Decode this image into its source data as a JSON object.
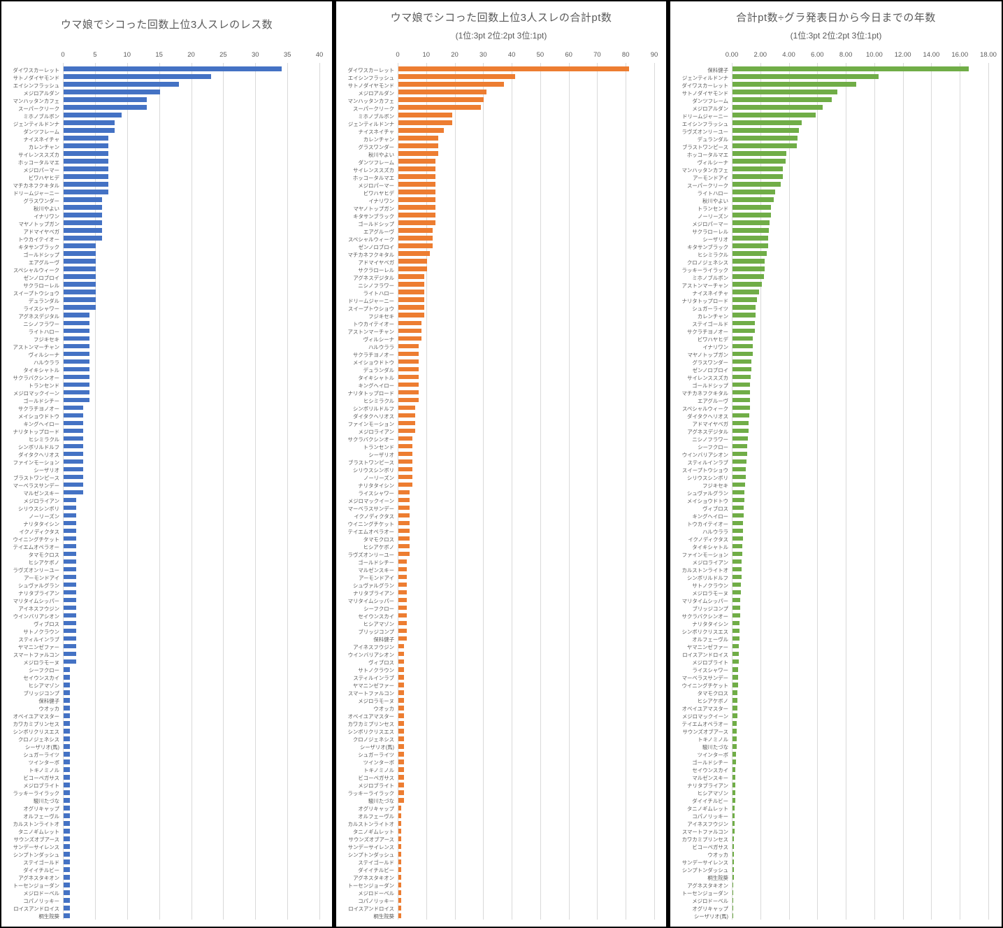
{
  "chart_data": [
    {
      "type": "bar",
      "orientation": "horizontal",
      "title": "ウマ娘でシコった回数上位3人スレのレス数",
      "subtitle": "",
      "color": "#4472C4",
      "grid": true,
      "legend": "none",
      "xlim": [
        0,
        40
      ],
      "ticks": [
        "0",
        "5",
        "10",
        "15",
        "20",
        "25",
        "30",
        "35",
        "40"
      ],
      "categories": [
        "ダイワスカーレット",
        "サトノダイヤモンド",
        "エイシンフラッシュ",
        "メジロアルダン",
        "マンハッタンカフェ",
        "スーパークリーク",
        "ミホノブルボン",
        "ジェンティルドンナ",
        "ダンツフレーム",
        "ナイスネイチャ",
        "カレンチャン",
        "サイレンススズカ",
        "ホッコータルマエ",
        "メジロパーマー",
        "ビワハヤヒデ",
        "マチカネフクキタル",
        "ドリームジャーニー",
        "グラスワンダー",
        "秋川やよい",
        "イナリワン",
        "マヤノトップガン",
        "アドマイヤベガ",
        "トウカイテイオー",
        "キタサンブラック",
        "ゴールドシップ",
        "エアグルーヴ",
        "スペシャルウィーク",
        "ゼンノロブロイ",
        "サクラローレル",
        "スイープトウショウ",
        "デュランダル",
        "ライスシャワー",
        "アグネスデジタル",
        "ニシノフラワー",
        "ライトハロー",
        "フジキセキ",
        "アストンマーチャン",
        "ヴィルシーナ",
        "ハルウララ",
        "タイキシャトル",
        "サクラバクシンオー",
        "トランセンド",
        "メジロマックイーン",
        "ゴールドシチー",
        "サクラチヨノオー",
        "メイショウドトウ",
        "キングヘイロー",
        "ナリタトップロード",
        "ヒシミラクル",
        "シンボリルドルフ",
        "ダイタクヘリオス",
        "ファインモーション",
        "シーザリオ",
        "ブラストワンピース",
        "マーベラスサンデー",
        "マルゼンスキー",
        "メジロライアン",
        "シリウスシンボリ",
        "ノーリーズン",
        "ナリタタイシン",
        "イクノディクタス",
        "ウイニングチケット",
        "テイエムオペラオー",
        "タマモクロス",
        "ヒシアケボノ",
        "ラヴズオンリーユー",
        "アーモンドアイ",
        "シュヴァルグラン",
        "ナリタブライアン",
        "マリタイムシッパー",
        "アイネスフウジン",
        "ウインバリアシオン",
        "ヴィブロス",
        "サトノクラウン",
        "スティルインラブ",
        "ヤマニンゼファー",
        "スマートファルコン",
        "メジロラモーヌ",
        "シーフクロー",
        "セイウンスカイ",
        "ヒシアマゾン",
        "ブリッジコンプ",
        "保科健子",
        "ウオッカ",
        "オベイユアマスター",
        "カワカミプリンセス",
        "シンボリクリスエス",
        "クロノジェネシス",
        "シーザリオ(馬)",
        "シュガーライツ",
        "ツインターボ",
        "トキノミノル",
        "ビコーペガサス",
        "メジロブライト",
        "ラッキーライラック",
        "駿川たづな",
        "オグリキャップ",
        "オルフェーヴル",
        "カルストンライトオ",
        "タニノギムレット",
        "サウンズオブアース",
        "サンデーサイレンス",
        "シンプトンダッシュ",
        "ステイゴールド",
        "ダイイチルビー",
        "アグネスタキオン",
        "トーセンジョーダン",
        "メジロドーベル",
        "コパノリッキー",
        "ロイスアンドロイス",
        "桐生院葵"
      ],
      "values": [
        34,
        23,
        18,
        15,
        13,
        13,
        9,
        8,
        8,
        7,
        7,
        7,
        7,
        7,
        7,
        7,
        7,
        6,
        6,
        6,
        6,
        6,
        6,
        5,
        5,
        5,
        5,
        5,
        5,
        5,
        5,
        5,
        4,
        4,
        4,
        4,
        4,
        4,
        4,
        4,
        4,
        4,
        4,
        4,
        3,
        3,
        3,
        3,
        3,
        3,
        3,
        3,
        3,
        3,
        3,
        3,
        2,
        2,
        2,
        2,
        2,
        2,
        2,
        2,
        2,
        2,
        2,
        2,
        2,
        2,
        2,
        2,
        2,
        2,
        2,
        2,
        2,
        2,
        1,
        1,
        1,
        1,
        1,
        1,
        1,
        1,
        1,
        1,
        1,
        1,
        1,
        1,
        1,
        1,
        1,
        1,
        1,
        1,
        1,
        1,
        1,
        1,
        1,
        1,
        1,
        1,
        1,
        1,
        1,
        1,
        1
      ]
    },
    {
      "type": "bar",
      "orientation": "horizontal",
      "title": "ウマ娘でシコった回数上位3人スレの合計pt数",
      "subtitle": "(1位:3pt 2位:2pt 3位:1pt)",
      "color": "#ED7D31",
      "grid": true,
      "legend": "none",
      "xlim": [
        0,
        90
      ],
      "ticks": [
        "0",
        "10",
        "20",
        "30",
        "40",
        "50",
        "60",
        "70",
        "80",
        "90"
      ],
      "categories": [
        "ダイワスカーレット",
        "エイシンフラッシュ",
        "サトノダイヤモンド",
        "メジロアルダン",
        "マンハッタンカフェ",
        "スーパークリーク",
        "ミホノブルボン",
        "ジェンティルドンナ",
        "ナイスネイチャ",
        "カレンチャン",
        "グラスワンダー",
        "秋川やよい",
        "ダンツフレーム",
        "サイレンススズカ",
        "ホッコータルマエ",
        "メジロパーマー",
        "ビワハヤヒデ",
        "イナリワン",
        "マヤノトップガン",
        "キタサンブラック",
        "ゴールドシップ",
        "エアグルーヴ",
        "スペシャルウィーク",
        "ゼンノロブロイ",
        "マチカネフクキタル",
        "アドマイヤベガ",
        "サクラローレル",
        "アグネスデジタル",
        "ニシノフラワー",
        "ライトハロー",
        "ドリームジャーニー",
        "スイープトウショウ",
        "フジキセキ",
        "トウカイテイオー",
        "アストンマーチャン",
        "ヴィルシーナ",
        "ハルウララ",
        "サクラチヨノオー",
        "メイショウドトウ",
        "デュランダル",
        "タイキシャトル",
        "キングヘイロー",
        "ナリタトップロード",
        "ヒシミラクル",
        "シンボリルドルフ",
        "ダイタクヘリオス",
        "ファインモーション",
        "メジロライアン",
        "サクラバクシンオー",
        "トランセンド",
        "シーザリオ",
        "ブラストワンピース",
        "シリウスシンボリ",
        "ノーリーズン",
        "ナリタタイシン",
        "ライスシャワー",
        "メジロマックイーン",
        "マーベラスサンデー",
        "イクノディクタス",
        "ウイニングチケット",
        "テイエムオペラオー",
        "タマモクロス",
        "ヒシアケボノ",
        "ラヴズオンリーユー",
        "ゴールドシチー",
        "マルゼンスキー",
        "アーモンドアイ",
        "シュヴァルグラン",
        "ナリタブライアン",
        "マリタイムシッパー",
        "シーフクロー",
        "セイウンスカイ",
        "ヒシアマゾン",
        "ブリッジコンプ",
        "保科健子",
        "アイネスフウジン",
        "ウインバリアシオン",
        "ヴィブロス",
        "サトノクラウン",
        "スティルインラブ",
        "ヤマニンゼファー",
        "スマートファルコン",
        "メジロラモーヌ",
        "ウオッカ",
        "オベイユアマスター",
        "カワカミプリンセス",
        "シンボリクリスエス",
        "クロノジェネシス",
        "シーザリオ(馬)",
        "シュガーライツ",
        "ツインターボ",
        "トキノミノル",
        "ビコーペガサス",
        "メジロブライト",
        "ラッキーライラック",
        "駿川たづな",
        "オグリキャップ",
        "オルフェーヴル",
        "カルストンライトオ",
        "タニノギムレット",
        "サウンズオブアース",
        "サンデーサイレンス",
        "シンプトンダッシュ",
        "ステイゴールド",
        "ダイイチルビー",
        "アグネスタキオン",
        "トーセンジョーダン",
        "メジロドーベル",
        "コパノリッキー",
        "ロイスアンドロイス",
        "桐生院葵"
      ],
      "values": [
        81,
        41,
        37,
        31,
        30,
        29,
        19,
        19,
        16,
        14,
        14,
        14,
        13,
        13,
        13,
        13,
        13,
        13,
        13,
        13,
        13,
        12,
        12,
        12,
        11,
        10,
        10,
        9,
        9,
        9,
        9,
        9,
        9,
        8,
        8,
        8,
        7,
        7,
        7,
        7,
        7,
        7,
        7,
        7,
        6,
        6,
        6,
        6,
        5,
        5,
        5,
        5,
        5,
        5,
        5,
        4,
        4,
        4,
        4,
        4,
        4,
        4,
        4,
        4,
        3,
        3,
        3,
        3,
        3,
        3,
        3,
        3,
        3,
        3,
        3,
        2,
        2,
        2,
        2,
        2,
        2,
        2,
        2,
        2,
        2,
        2,
        2,
        2,
        2,
        2,
        2,
        2,
        2,
        2,
        2,
        2,
        1,
        1,
        1,
        1,
        1,
        1,
        1,
        1,
        1,
        1,
        1,
        1,
        1,
        1,
        1
      ]
    },
    {
      "type": "bar",
      "orientation": "horizontal",
      "title": "合計pt数÷グラ発表日から今日までの年数",
      "subtitle": "(1位:3pt 2位:2pt 3位:1pt)",
      "color": "#70AD47",
      "grid": true,
      "legend": "none",
      "xlim": [
        0,
        18
      ],
      "ticks": [
        "0.00",
        "2.00",
        "4.00",
        "6.00",
        "8.00",
        "10.00",
        "12.00",
        "14.00",
        "16.00",
        "18.00"
      ],
      "categories": [
        "保科健子",
        "ジェンティルドンナ",
        "ダイワスカーレット",
        "サトノダイヤモンド",
        "ダンツフレーム",
        "メジロアルダン",
        "ドリームジャーニー",
        "エイシンフラッシュ",
        "ラヴズオンリーユー",
        "デュランダル",
        "ブラストワンピース",
        "ホッコータルマエ",
        "ヴィルシーナ",
        "マンハッタンカフェ",
        "アーモンドアイ",
        "スーパークリーク",
        "ライトハロー",
        "秋川やよい",
        "トランセンド",
        "ノーリーズン",
        "メジロパーマー",
        "サクラローレル",
        "シーザリオ",
        "キタサンブラック",
        "ヒシミラクル",
        "クロノジェネシス",
        "ラッキーライラック",
        "ミホノブルボン",
        "アストンマーチャン",
        "ナイスネイチャ",
        "ナリタトップロード",
        "シュガーライツ",
        "カレンチャン",
        "ステイゴールド",
        "サクラチヨノオー",
        "ビワハヤヒデ",
        "イナリワン",
        "マヤノトップガン",
        "グラスワンダー",
        "ゼンノロブロイ",
        "サイレンススズカ",
        "ゴールドシップ",
        "マチカネフクキタル",
        "エアグルーヴ",
        "スペシャルウィーク",
        "ダイタクヘリオス",
        "アドマイヤベガ",
        "アグネスデジタル",
        "ニシノフラワー",
        "シーフクロー",
        "ウインバリアシオン",
        "スティルインラブ",
        "スイープトウショウ",
        "シリウスシンボリ",
        "フジキセキ",
        "シュヴァルグラン",
        "メイショウドトウ",
        "ヴィブロス",
        "キングヘイロー",
        "トウカイテイオー",
        "ハルウララ",
        "イクノディクタス",
        "タイキシャトル",
        "ファインモーション",
        "メジロライアン",
        "カルストンライトオ",
        "シンボリルドルフ",
        "サトノクラウン",
        "メジロラモーヌ",
        "マリタイムシッパー",
        "ブリッジコンプ",
        "サクラバクシンオー",
        "ナリタタイシン",
        "シンボリクリスエス",
        "オルフェーヴル",
        "ヤマニンゼファー",
        "ロイスアンドロイス",
        "メジロブライト",
        "ライスシャワー",
        "マーベラスサンデー",
        "ウイニングチケット",
        "タマモクロス",
        "ヒシアケボノ",
        "オベイユアマスター",
        "メジロマックイーン",
        "テイエムオペラオー",
        "サウンズオブアース",
        "トキノミノル",
        "駿川たづな",
        "ツインターボ",
        "ゴールドシチー",
        "セイウンスカイ",
        "マルゼンスキー",
        "ナリタブライアン",
        "ヒシアマゾン",
        "ダイイチルビー",
        "タニノギムレット",
        "コパノリッキー",
        "アイネスフウジン",
        "スマートファルコン",
        "カワカミプリンセス",
        "ビコーペガサス",
        "ウオッカ",
        "サンデーサイレンス",
        "シンプトンダッシュ",
        "桐生院葵",
        "アグネスタキオン",
        "トーセンジョーダン",
        "メジロドーベル",
        "オグリキャップ",
        "シーザリオ(馬)"
      ],
      "values": [
        16.6,
        10.25,
        8.68,
        7.37,
        6.98,
        6.33,
        5.86,
        4.84,
        4.66,
        4.57,
        4.51,
        3.77,
        3.72,
        3.52,
        3.52,
        3.38,
        2.98,
        2.91,
        2.68,
        2.68,
        2.61,
        2.56,
        2.51,
        2.51,
        2.38,
        2.26,
        2.26,
        2.21,
        2.06,
        1.88,
        1.74,
        1.64,
        1.6,
        1.58,
        1.56,
        1.44,
        1.44,
        1.42,
        1.31,
        1.3,
        1.26,
        1.24,
        1.24,
        1.22,
        1.21,
        1.2,
        1.12,
        1.11,
        1.1,
        1.02,
        1.01,
        1.0,
        0.92,
        0.91,
        0.9,
        0.85,
        0.82,
        0.8,
        0.78,
        0.76,
        0.74,
        0.72,
        0.7,
        0.68,
        0.66,
        0.64,
        0.62,
        0.6,
        0.58,
        0.56,
        0.54,
        0.52,
        0.51,
        0.5,
        0.47,
        0.45,
        0.44,
        0.42,
        0.41,
        0.39,
        0.38,
        0.36,
        0.35,
        0.34,
        0.33,
        0.31,
        0.3,
        0.28,
        0.27,
        0.25,
        0.24,
        0.22,
        0.21,
        0.2,
        0.19,
        0.18,
        0.16,
        0.15,
        0.14,
        0.13,
        0.12,
        0.11,
        0.1,
        0.09,
        0.08,
        0.08,
        0.07,
        0.06,
        0.06,
        0.05,
        0.04
      ]
    }
  ],
  "style": {
    "grid_color": "#d9d9d9",
    "text_color": "#595959",
    "panel_background": "#ffffff",
    "frame_color": "#000000"
  }
}
